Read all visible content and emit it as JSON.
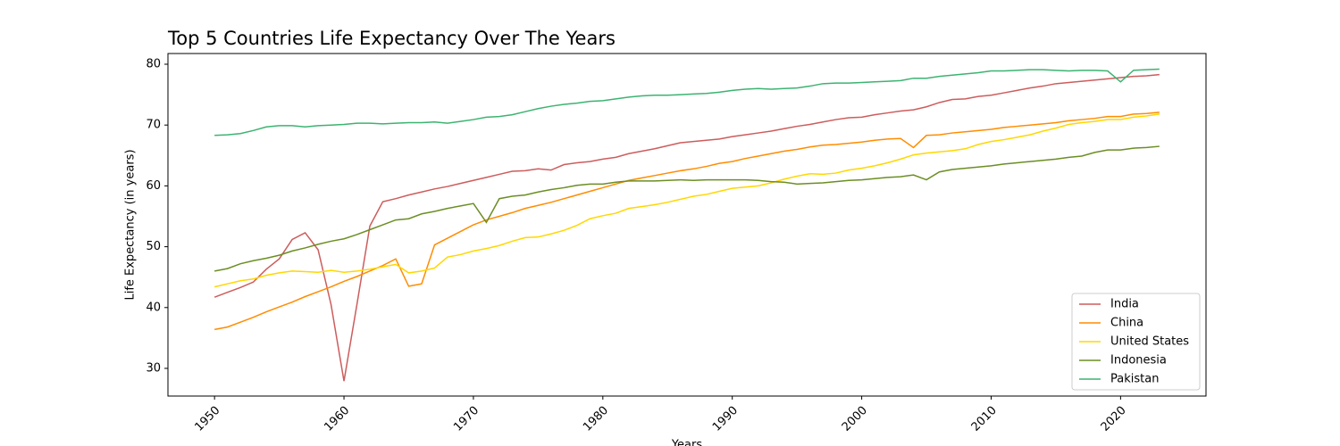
{
  "chart_data": {
    "type": "line",
    "title": "Top 5 Countries Life Expectancy Over The Years",
    "xlabel": "Years",
    "ylabel": "Life Expectancy (in years)",
    "x": [
      1950,
      1951,
      1952,
      1953,
      1954,
      1955,
      1956,
      1957,
      1958,
      1959,
      1960,
      1961,
      1962,
      1963,
      1964,
      1965,
      1966,
      1967,
      1968,
      1969,
      1970,
      1971,
      1972,
      1973,
      1974,
      1975,
      1976,
      1977,
      1978,
      1979,
      1980,
      1981,
      1982,
      1983,
      1984,
      1985,
      1986,
      1987,
      1988,
      1989,
      1990,
      1991,
      1992,
      1993,
      1994,
      1995,
      1996,
      1997,
      1998,
      1999,
      2000,
      2001,
      2002,
      2003,
      2004,
      2005,
      2006,
      2007,
      2008,
      2009,
      2010,
      2011,
      2012,
      2013,
      2014,
      2015,
      2016,
      2017,
      2018,
      2019,
      2020,
      2021,
      2022,
      2023
    ],
    "series": [
      {
        "name": "India",
        "color": "#cd5c5c",
        "values": [
          41.7,
          42.5,
          43.3,
          44.2,
          46.3,
          48,
          51.2,
          52.3,
          49.5,
          40.5,
          27.9,
          40.5,
          53.4,
          57.4,
          57.9,
          58.5,
          59,
          59.5,
          59.9,
          60.4,
          60.9,
          61.4,
          61.9,
          62.4,
          62.5,
          62.8,
          62.6,
          63.5,
          63.8,
          64,
          64.4,
          64.7,
          65.3,
          65.7,
          66.1,
          66.6,
          67.1,
          67.3,
          67.5,
          67.7,
          68.1,
          68.4,
          68.7,
          69,
          69.4,
          69.8,
          70.1,
          70.5,
          70.9,
          71.2,
          71.3,
          71.7,
          72,
          72.3,
          72.5,
          73,
          73.7,
          74.2,
          74.3,
          74.7,
          74.9,
          75.3,
          75.7,
          76.1,
          76.4,
          76.8,
          77,
          77.2,
          77.4,
          77.6,
          77.8,
          78,
          78.1,
          78.3
        ]
      },
      {
        "name": "China",
        "color": "#ff8c00",
        "values": [
          36.4,
          36.8,
          37.6,
          38.4,
          39.3,
          40.1,
          40.9,
          41.8,
          42.6,
          43.4,
          44.3,
          45.1,
          46,
          46.9,
          48,
          43.5,
          43.9,
          50.3,
          51.4,
          52.5,
          53.6,
          54.4,
          55,
          55.6,
          56.3,
          56.8,
          57.3,
          57.9,
          58.5,
          59.1,
          59.7,
          60.3,
          60.9,
          61.3,
          61.7,
          62.1,
          62.5,
          62.8,
          63.2,
          63.7,
          64,
          64.5,
          64.9,
          65.3,
          65.7,
          66,
          66.4,
          66.7,
          66.8,
          67,
          67.2,
          67.5,
          67.7,
          67.8,
          66.3,
          68.3,
          68.4,
          68.7,
          68.9,
          69.1,
          69.3,
          69.6,
          69.8,
          70,
          70.2,
          70.4,
          70.7,
          70.9,
          71.1,
          71.4,
          71.4,
          71.8,
          71.9,
          72.1
        ]
      },
      {
        "name": "United States",
        "color": "#ffd700",
        "values": [
          43.4,
          43.9,
          44.4,
          44.7,
          45.3,
          45.7,
          46,
          45.9,
          45.8,
          46.1,
          45.8,
          46,
          46.3,
          46.7,
          47.1,
          45.7,
          46,
          46.5,
          48.3,
          48.7,
          49.3,
          49.7,
          50.2,
          50.9,
          51.5,
          51.6,
          52.1,
          52.7,
          53.5,
          54.6,
          55.1,
          55.5,
          56.3,
          56.6,
          56.9,
          57.3,
          57.8,
          58.3,
          58.6,
          59.1,
          59.6,
          59.8,
          60,
          60.5,
          61.1,
          61.6,
          62,
          61.9,
          62.1,
          62.6,
          62.9,
          63.3,
          63.8,
          64.4,
          65.1,
          65.4,
          65.6,
          65.8,
          66.1,
          66.8,
          67.3,
          67.6,
          68,
          68.4,
          69,
          69.5,
          70.1,
          70.4,
          70.6,
          70.9,
          70.9,
          71.3,
          71.5,
          71.8
        ]
      },
      {
        "name": "Indonesia",
        "color": "#6b8e23",
        "values": [
          46,
          46.4,
          47.2,
          47.7,
          48.1,
          48.6,
          49.3,
          49.8,
          50.4,
          50.9,
          51.3,
          52,
          52.8,
          53.6,
          54.4,
          54.6,
          55.4,
          55.8,
          56.3,
          56.7,
          57.1,
          54,
          57.9,
          58.3,
          58.5,
          59,
          59.4,
          59.7,
          60.1,
          60.3,
          60.3,
          60.6,
          60.8,
          60.8,
          60.8,
          60.9,
          61,
          60.9,
          61,
          61,
          61,
          61,
          60.9,
          60.7,
          60.6,
          60.3,
          60.4,
          60.5,
          60.7,
          60.9,
          61,
          61.2,
          61.4,
          61.5,
          61.8,
          61,
          62.3,
          62.7,
          62.9,
          63.1,
          63.3,
          63.6,
          63.8,
          64,
          64.2,
          64.4,
          64.7,
          64.9,
          65.5,
          65.9,
          65.9,
          66.2,
          66.3,
          66.5
        ]
      },
      {
        "name": "Pakistan",
        "color": "#3cb371",
        "values": [
          68.3,
          68.4,
          68.6,
          69.1,
          69.7,
          69.9,
          69.9,
          69.7,
          69.9,
          70,
          70.1,
          70.3,
          70.3,
          70.2,
          70.3,
          70.4,
          70.4,
          70.5,
          70.3,
          70.6,
          70.9,
          71.3,
          71.4,
          71.7,
          72.2,
          72.7,
          73.1,
          73.4,
          73.6,
          73.9,
          74,
          74.3,
          74.6,
          74.8,
          74.9,
          74.9,
          75,
          75.1,
          75.2,
          75.4,
          75.7,
          75.9,
          76,
          75.9,
          76,
          76.1,
          76.4,
          76.8,
          76.9,
          76.9,
          77,
          77.1,
          77.2,
          77.3,
          77.7,
          77.7,
          78,
          78.2,
          78.4,
          78.6,
          78.9,
          78.9,
          79,
          79.1,
          79.1,
          79,
          78.9,
          79,
          79,
          78.9,
          77.1,
          79,
          79.1,
          79.2
        ]
      }
    ],
    "xlim": [
      1946.4,
      2026.6
    ],
    "xticks": [
      1950,
      1960,
      1970,
      1980,
      1990,
      2000,
      2010,
      2020
    ],
    "ylim": [
      25.45,
      81.76
    ],
    "yticks": [
      30,
      40,
      50,
      60,
      70,
      80
    ],
    "legend": "lower right",
    "grid": false
  }
}
